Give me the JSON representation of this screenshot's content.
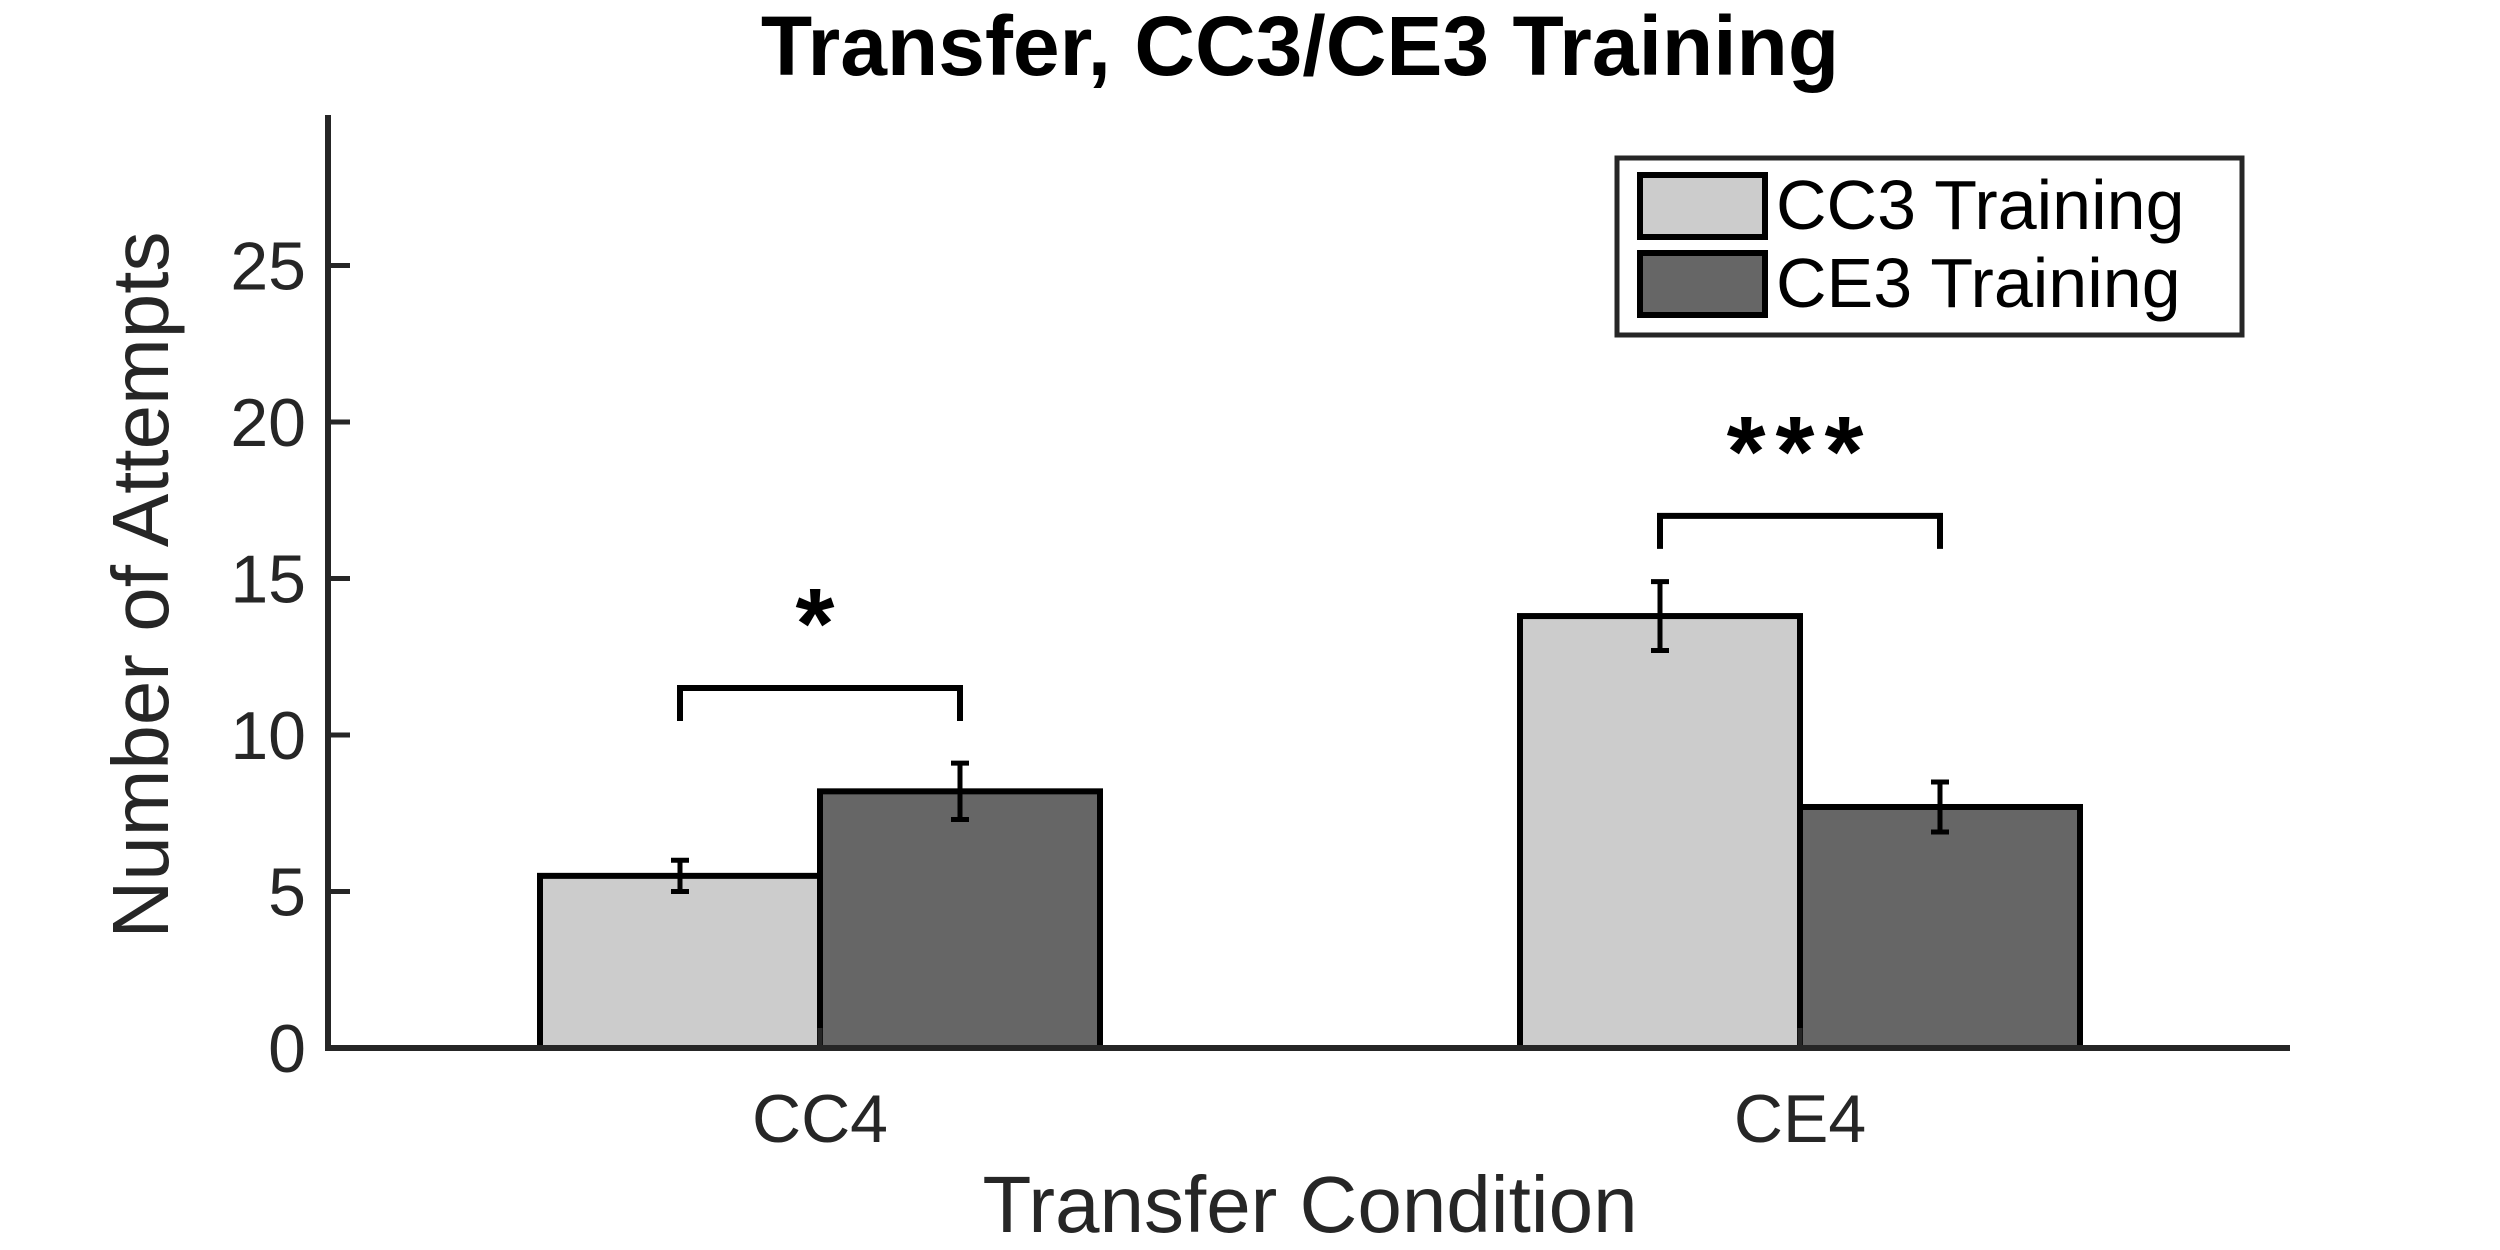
{
  "chart_data": {
    "type": "bar",
    "title": "Transfer, CC3/CE3 Training",
    "xlabel": "Transfer Condition",
    "ylabel": "Number of Attempts",
    "categories": [
      "CC4",
      "CE4"
    ],
    "ylim": [
      0,
      30
    ],
    "yticks": [
      0,
      5,
      10,
      15,
      20,
      25
    ],
    "grid": false,
    "legend_position": "top-right",
    "series": [
      {
        "name": "CC3 Training",
        "values": [
          5.5,
          13.8
        ],
        "errors": [
          0.5,
          1.1
        ],
        "color": "#cccccc"
      },
      {
        "name": "CE3 Training",
        "values": [
          8.2,
          7.7
        ],
        "errors": [
          0.9,
          0.8
        ],
        "color": "#666666"
      }
    ],
    "significance": [
      {
        "category": "CC4",
        "label": "*",
        "bracket_y": 11.5
      },
      {
        "category": "CE4",
        "label": "***",
        "bracket_y": 17.0
      }
    ]
  }
}
